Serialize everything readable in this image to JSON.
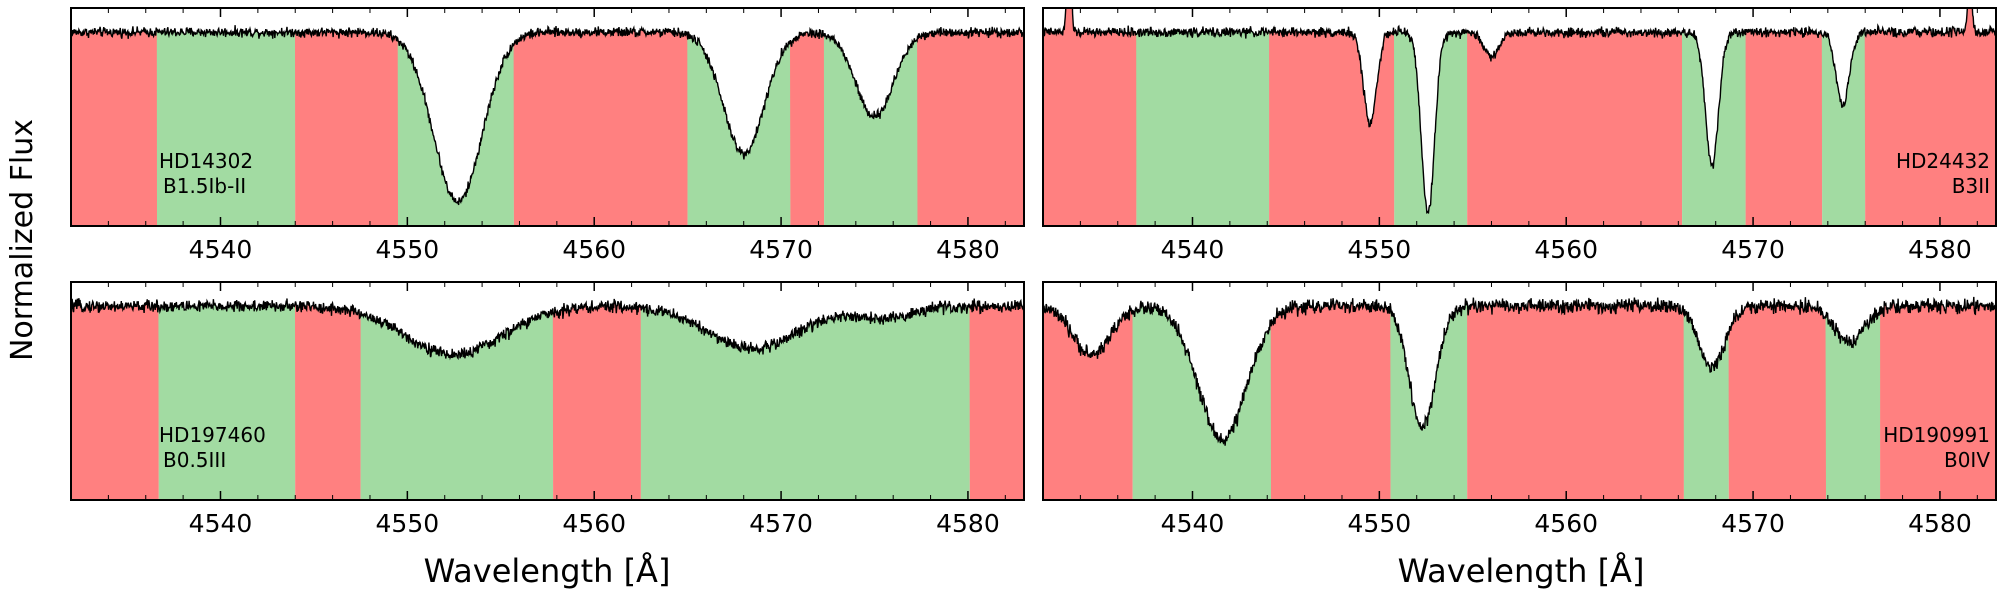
{
  "figure": {
    "ylabel": "Normalized Flux",
    "xlabel": "Wavelength [Å]"
  },
  "colors": {
    "red_band": "#ff8080",
    "green_band": "#a2dba2",
    "spectrum": "#000000"
  },
  "chart_data": [
    {
      "type": "line",
      "name": "HD14302",
      "label_line1": "HD14302",
      "label_line2": "B1.5Ib-II",
      "label_position": "lower-left",
      "xlim": [
        4532,
        4583
      ],
      "xticks": [
        4540,
        4550,
        4560,
        4570,
        4580
      ],
      "ylim": [
        0.68,
        1.04
      ],
      "grid": false,
      "continuum": 1.0,
      "noise": 0.004,
      "lines": [
        {
          "center": 4552.7,
          "depth": 0.28,
          "width": 1.3
        },
        {
          "center": 4568.0,
          "depth": 0.2,
          "width": 1.1
        },
        {
          "center": 4575.0,
          "depth": 0.14,
          "width": 1.0
        }
      ],
      "emission_lines": [],
      "bands": [
        {
          "from": 4532.0,
          "to": 4536.6,
          "color": "red"
        },
        {
          "from": 4536.6,
          "to": 4544.0,
          "color": "green"
        },
        {
          "from": 4544.0,
          "to": 4549.5,
          "color": "red"
        },
        {
          "from": 4549.5,
          "to": 4555.7,
          "color": "green"
        },
        {
          "from": 4555.7,
          "to": 4565.0,
          "color": "red"
        },
        {
          "from": 4565.0,
          "to": 4570.5,
          "color": "green"
        },
        {
          "from": 4570.5,
          "to": 4572.3,
          "color": "red"
        },
        {
          "from": 4572.3,
          "to": 4577.3,
          "color": "green"
        },
        {
          "from": 4577.3,
          "to": 4583.0,
          "color": "red"
        }
      ]
    },
    {
      "type": "line",
      "name": "HD24432",
      "label_line1": "HD24432",
      "label_line2": "B3II",
      "label_position": "lower-right",
      "xlim": [
        4532,
        4583
      ],
      "xticks": [
        4540,
        4550,
        4560,
        4570,
        4580
      ],
      "ylim": [
        0.68,
        1.04
      ],
      "grid": false,
      "continuum": 1.0,
      "noise": 0.004,
      "lines": [
        {
          "center": 4549.5,
          "depth": 0.15,
          "width": 0.35
        },
        {
          "center": 4552.6,
          "depth": 0.3,
          "width": 0.35
        },
        {
          "center": 4556.0,
          "depth": 0.04,
          "width": 0.4
        },
        {
          "center": 4567.8,
          "depth": 0.22,
          "width": 0.35
        },
        {
          "center": 4574.8,
          "depth": 0.12,
          "width": 0.35
        }
      ],
      "emission_lines": [
        {
          "center": 4533.4,
          "height": 0.18,
          "width": 0.1
        },
        {
          "center": 4581.6,
          "height": 0.1,
          "width": 0.1
        }
      ],
      "bands": [
        {
          "from": 4532.0,
          "to": 4537.0,
          "color": "red"
        },
        {
          "from": 4537.0,
          "to": 4544.1,
          "color": "green"
        },
        {
          "from": 4544.1,
          "to": 4550.8,
          "color": "red"
        },
        {
          "from": 4550.8,
          "to": 4554.7,
          "color": "green"
        },
        {
          "from": 4554.7,
          "to": 4566.2,
          "color": "red"
        },
        {
          "from": 4566.2,
          "to": 4569.6,
          "color": "green"
        },
        {
          "from": 4569.6,
          "to": 4573.7,
          "color": "red"
        },
        {
          "from": 4573.7,
          "to": 4576.0,
          "color": "green"
        },
        {
          "from": 4576.0,
          "to": 4583.0,
          "color": "red"
        }
      ]
    },
    {
      "type": "line",
      "name": "HD197460",
      "label_line1": "HD197460",
      "label_line2": "B0.5III",
      "label_position": "lower-left",
      "xlim": [
        4532,
        4583
      ],
      "xticks": [
        4540,
        4550,
        4560,
        4570,
        4580
      ],
      "ylim": [
        0.68,
        1.04
      ],
      "grid": false,
      "continuum": 1.0,
      "noise": 0.005,
      "lines": [
        {
          "center": 4552.5,
          "depth": 0.08,
          "width": 2.6
        },
        {
          "center": 4568.5,
          "depth": 0.07,
          "width": 2.4
        },
        {
          "center": 4575.5,
          "depth": 0.02,
          "width": 1.5
        }
      ],
      "emission_lines": [],
      "bands": [
        {
          "from": 4532.0,
          "to": 4536.7,
          "color": "red"
        },
        {
          "from": 4536.7,
          "to": 4544.0,
          "color": "green"
        },
        {
          "from": 4544.0,
          "to": 4547.5,
          "color": "red"
        },
        {
          "from": 4547.5,
          "to": 4557.8,
          "color": "green"
        },
        {
          "from": 4557.8,
          "to": 4562.5,
          "color": "red"
        },
        {
          "from": 4562.5,
          "to": 4580.1,
          "color": "green"
        },
        {
          "from": 4580.1,
          "to": 4583.0,
          "color": "red"
        }
      ]
    },
    {
      "type": "line",
      "name": "HD190991",
      "label_line1": "HD190991",
      "label_line2": "B0IV",
      "label_position": "lower-right",
      "xlim": [
        4532,
        4583
      ],
      "xticks": [
        4540,
        4550,
        4560,
        4570,
        4580
      ],
      "ylim": [
        0.68,
        1.04
      ],
      "grid": false,
      "continuum": 1.0,
      "noise": 0.006,
      "lines": [
        {
          "center": 4541.6,
          "depth": 0.22,
          "width": 1.3
        },
        {
          "center": 4534.6,
          "depth": 0.08,
          "width": 1.0
        },
        {
          "center": 4552.3,
          "depth": 0.2,
          "width": 0.7
        },
        {
          "center": 4567.8,
          "depth": 0.1,
          "width": 0.7
        },
        {
          "center": 4575.2,
          "depth": 0.06,
          "width": 0.8
        }
      ],
      "emission_lines": [],
      "bands": [
        {
          "from": 4532.0,
          "to": 4536.8,
          "color": "red"
        },
        {
          "from": 4536.8,
          "to": 4544.2,
          "color": "green"
        },
        {
          "from": 4544.2,
          "to": 4550.6,
          "color": "red"
        },
        {
          "from": 4550.6,
          "to": 4554.7,
          "color": "green"
        },
        {
          "from": 4554.7,
          "to": 4566.3,
          "color": "red"
        },
        {
          "from": 4566.3,
          "to": 4568.7,
          "color": "green"
        },
        {
          "from": 4568.7,
          "to": 4573.9,
          "color": "red"
        },
        {
          "from": 4573.9,
          "to": 4576.8,
          "color": "green"
        },
        {
          "from": 4576.8,
          "to": 4583.0,
          "color": "red"
        }
      ]
    }
  ]
}
